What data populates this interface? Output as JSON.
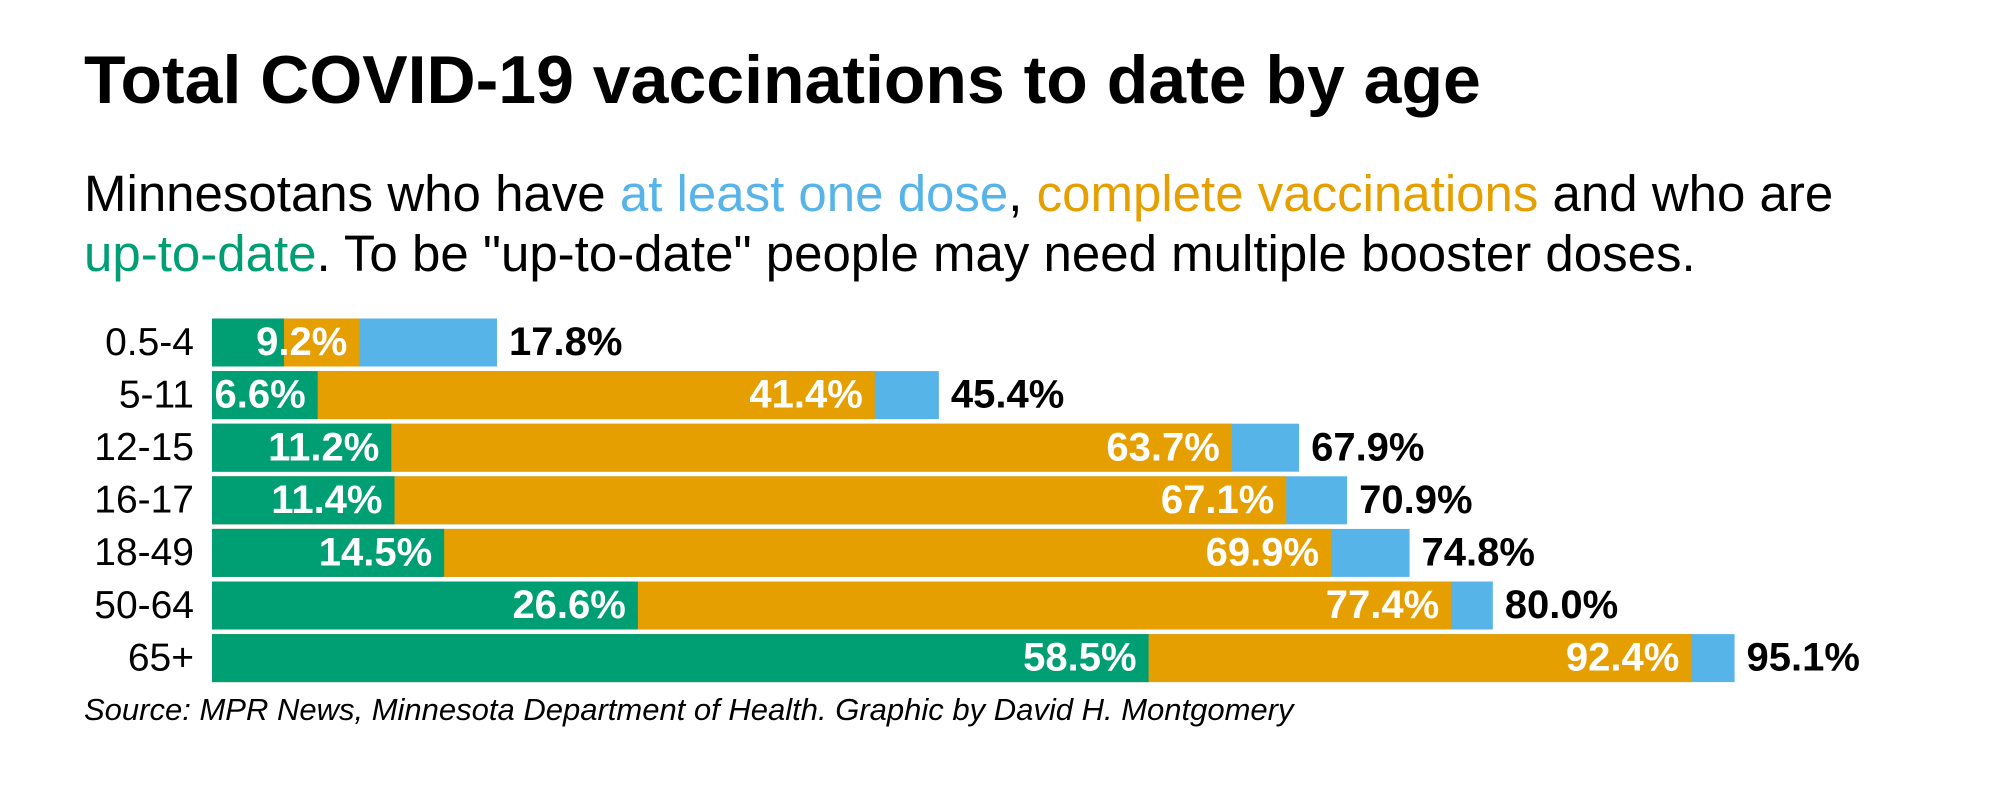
{
  "chart_data": {
    "type": "overlap-bar",
    "title": "Total COVID-19 vaccinations to date by age",
    "subtitle": [
      [
        "Minnesotans who have ",
        "at least one dose",
        ", ",
        "complete vaccinations",
        " and who are"
      ],
      [
        "up-to-date",
        ". To be \"up-to-date\" people may need multiple booster doses."
      ]
    ],
    "categories": [
      "0.5-4",
      "5-11",
      "12-15",
      "16-17",
      "18-49",
      "50-64",
      "65+"
    ],
    "xlim": [
      0,
      100
    ],
    "series": [
      {
        "name": "at least one dose",
        "color": "#56b4e9",
        "values": [
          17.8,
          45.4,
          67.9,
          70.9,
          74.8,
          80.0,
          95.1
        ],
        "value_labels": [
          "17.8%",
          "45.4%",
          "67.9%",
          "70.9%",
          "74.8%",
          "80.0%",
          "95.1%"
        ]
      },
      {
        "name": "complete vaccinations",
        "color": "#e69f00",
        "values": [
          9.2,
          41.4,
          63.7,
          67.1,
          69.9,
          77.4,
          92.4
        ],
        "value_labels": [
          "9.2%",
          "41.4%",
          "63.7%",
          "67.1%",
          "69.9%",
          "77.4%",
          "92.4%"
        ]
      },
      {
        "name": "up-to-date",
        "color": "#009e73",
        "values": [
          4.5,
          6.6,
          11.2,
          11.4,
          14.5,
          26.6,
          58.5
        ],
        "value_labels": [
          null,
          "6.6%",
          "11.2%",
          "11.4%",
          "14.5%",
          "26.6%",
          "58.5%"
        ]
      }
    ],
    "source": "Source: MPR News, Minnesota Department of Health. Graphic by David H. Montgomery"
  }
}
